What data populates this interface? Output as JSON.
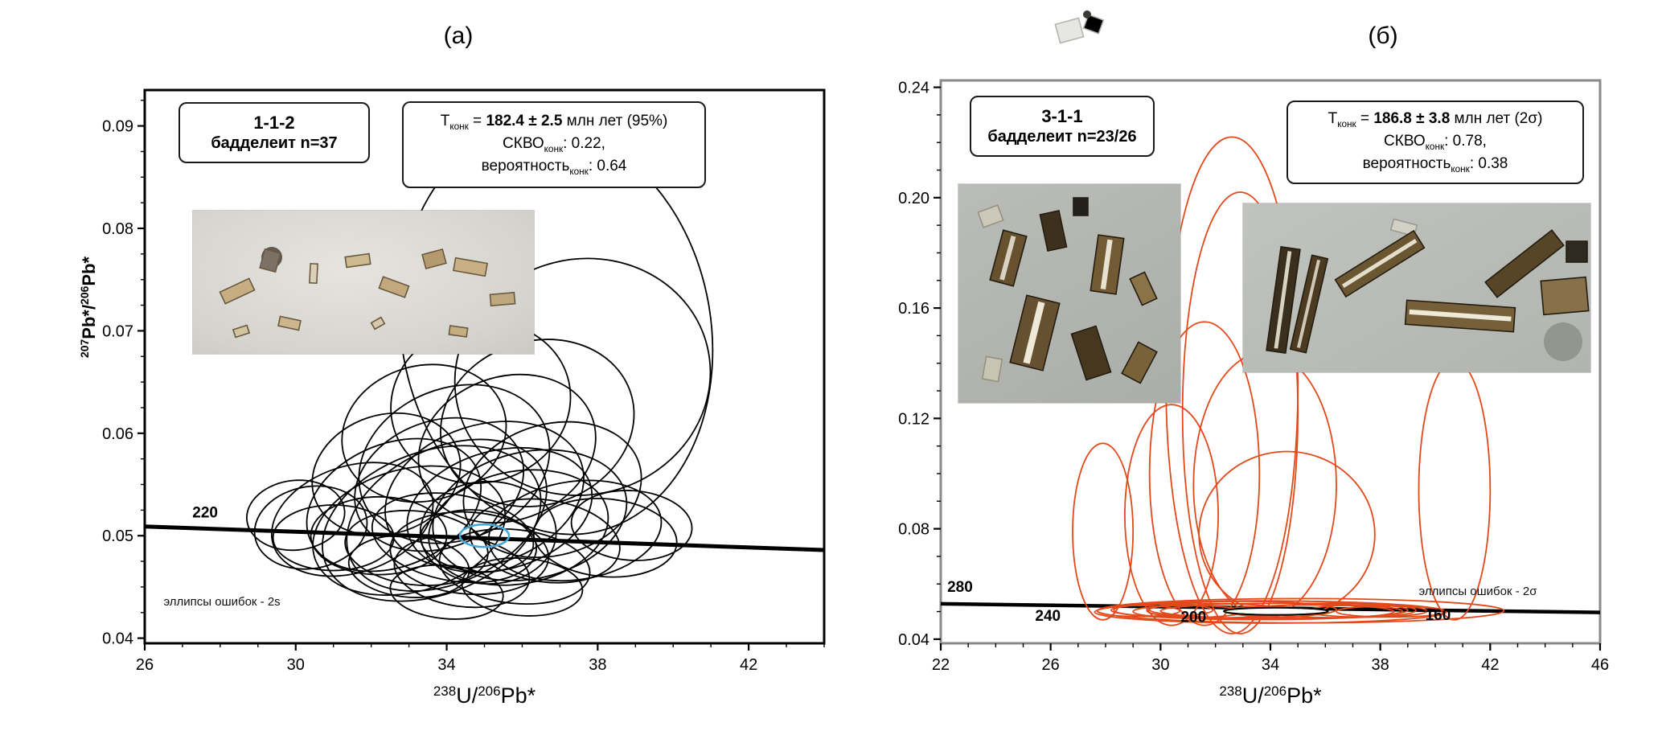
{
  "figure": {
    "background": "#ffffff"
  },
  "panels": [
    {
      "label": "(а)",
      "sample_box": {
        "code": "1-1-2",
        "mineral": "бадделеит",
        "count": "n=37"
      },
      "stats_box": {
        "t_prefix": "T",
        "t_sub": "конк",
        "t_mid": " = ",
        "t_value": "182.4 ± 2.5",
        "t_suffix": " млн лет (95%)",
        "mswd_prefix": "СКВО",
        "mswd_sub": "конк",
        "mswd_value": ": 0.22,",
        "prob_prefix": "вероятность",
        "prob_sub": "конк",
        "prob_value": ": 0.64"
      }
    },
    {
      "label": "(б)",
      "sample_box": {
        "code": "3-1-1",
        "mineral": "бадделеит",
        "count": "n=23/26"
      },
      "stats_box": {
        "t_prefix": "T",
        "t_sub": "конк",
        "t_mid": " = ",
        "t_value": "186.8 ± 3.8",
        "t_suffix": " млн лет (2σ)",
        "mswd_prefix": "СКВО",
        "mswd_sub": "конк",
        "mswd_value": ": 0.78,",
        "prob_prefix": "вероятность",
        "prob_sub": "конк",
        "prob_value": ": 0.38"
      }
    }
  ],
  "chart_data": [
    {
      "type": "scatter",
      "subtype": "tera-wasserburg-concordia-error-ellipses",
      "title": "(а)",
      "sample": "1-1-2 бадделеит n=37",
      "n": 37,
      "concordia_age_Ma": 182.4,
      "age_uncertainty_Ma": 2.5,
      "mswd": 0.22,
      "probability": 0.64,
      "xlabel": "238U/206Pb*",
      "ylabel": "207Pb*/206Pb*",
      "xlabel_parts": [
        {
          "t": "238",
          "sup": true
        },
        {
          "t": "U/"
        },
        {
          "t": "206",
          "sup": true
        },
        {
          "t": "Pb*"
        }
      ],
      "ylabel_parts": [
        {
          "t": "207",
          "sup": true
        },
        {
          "t": "Pb*/"
        },
        {
          "t": "206",
          "sup": true
        },
        {
          "t": "Pb*"
        }
      ],
      "xlim": [
        26,
        44
      ],
      "ylim": [
        0.0395,
        0.0935
      ],
      "xticks": [
        26,
        30,
        34,
        38,
        42
      ],
      "xtick_labels": [
        "26",
        "30",
        "34",
        "38",
        "42"
      ],
      "yticks": [
        0.04,
        0.05,
        0.06,
        0.07,
        0.08,
        0.09
      ],
      "ytick_labels": [
        "0.04",
        "0.05",
        "0.06",
        "0.07",
        "0.08",
        "0.09"
      ],
      "minor_x_step": 1,
      "minor_y_step": 0.0025,
      "grid": false,
      "ellipse_color": "#000000",
      "ellipse_stroke": 1.8,
      "concordia_line": {
        "x1": 26,
        "y1": 0.0509,
        "x2": 44,
        "y2": 0.0486,
        "width": 5,
        "color": "#000000"
      },
      "age_labels": [
        {
          "text": "220",
          "x": 27.6,
          "y": 0.0518
        }
      ],
      "concordia_age_ellipse": {
        "cx": 35.0,
        "cy": 0.05,
        "rx": 0.65,
        "ry": 0.0011,
        "color": "#49a8d8",
        "width": 2.6,
        "fill": "none"
      },
      "annotations": [
        {
          "text": "эллипсы ошибок - 2s",
          "x": 26.5,
          "y": 0.0432,
          "size": 15
        }
      ],
      "ellipses": [
        [
          33.0,
          0.0505,
          2.6,
          0.006,
          -15
        ],
        [
          34.2,
          0.0498,
          2.2,
          0.0042,
          10
        ],
        [
          35.1,
          0.0503,
          1.8,
          0.005,
          0
        ],
        [
          33.6,
          0.0512,
          3.0,
          0.007,
          -20
        ],
        [
          34.8,
          0.0495,
          1.5,
          0.003,
          5
        ],
        [
          32.2,
          0.05,
          1.8,
          0.0038,
          0
        ],
        [
          35.9,
          0.0508,
          2.4,
          0.0055,
          -10
        ],
        [
          36.6,
          0.0495,
          2.0,
          0.004,
          8
        ],
        [
          31.5,
          0.0516,
          2.2,
          0.0052,
          -18
        ],
        [
          34.0,
          0.052,
          2.8,
          0.0066,
          -25
        ],
        [
          35.4,
          0.0525,
          2.5,
          0.0058,
          -15
        ],
        [
          33.2,
          0.0488,
          1.9,
          0.0036,
          6
        ],
        [
          34.6,
          0.0483,
          2.1,
          0.004,
          4
        ],
        [
          36.2,
          0.052,
          2.6,
          0.0062,
          -12
        ],
        [
          32.6,
          0.053,
          2.4,
          0.006,
          -22
        ],
        [
          35.0,
          0.054,
          2.7,
          0.0068,
          -18
        ],
        [
          33.8,
          0.055,
          2.3,
          0.0062,
          -20
        ],
        [
          31.0,
          0.0498,
          1.6,
          0.0032,
          0
        ],
        [
          37.4,
          0.0505,
          2.3,
          0.0048,
          -8
        ],
        [
          38.2,
          0.0498,
          1.9,
          0.0038,
          5
        ],
        [
          34.4,
          0.0465,
          1.8,
          0.0034,
          8
        ],
        [
          33.0,
          0.047,
          1.6,
          0.003,
          5
        ],
        [
          35.8,
          0.047,
          2.0,
          0.0036,
          6
        ],
        [
          30.4,
          0.0508,
          1.5,
          0.004,
          -10
        ],
        [
          36.8,
          0.0545,
          2.4,
          0.0064,
          -16
        ],
        [
          34.2,
          0.057,
          2.6,
          0.0074,
          -22
        ],
        [
          32.4,
          0.056,
          2.0,
          0.0058,
          -18
        ],
        [
          35.6,
          0.0585,
          2.4,
          0.007,
          -20
        ],
        [
          33.4,
          0.06,
          2.2,
          0.0066,
          -15
        ],
        [
          36.4,
          0.061,
          2.6,
          0.008,
          -18
        ],
        [
          34.9,
          0.063,
          2.4,
          0.0078,
          -16
        ],
        [
          37.6,
          0.0655,
          3.4,
          0.0115,
          -14
        ],
        [
          36.9,
          0.07,
          4.1,
          0.02,
          -10
        ],
        [
          30.0,
          0.052,
          1.3,
          0.0034,
          -6
        ],
        [
          38.9,
          0.051,
          1.6,
          0.0034,
          4
        ],
        [
          34.0,
          0.0445,
          1.5,
          0.0026,
          5
        ],
        [
          36.0,
          0.045,
          1.6,
          0.0028,
          4
        ]
      ]
    },
    {
      "type": "scatter",
      "subtype": "tera-wasserburg-concordia-error-ellipses",
      "title": "(б)",
      "sample": "3-1-1 бадделеит n=23/26",
      "n": "23/26",
      "concordia_age_Ma": 186.8,
      "age_uncertainty_Ma": 3.8,
      "mswd": 0.78,
      "probability": 0.38,
      "xlabel": "238U/206Pb*",
      "ylabel": "",
      "xlabel_parts": [
        {
          "t": "238",
          "sup": true
        },
        {
          "t": "U/"
        },
        {
          "t": "206",
          "sup": true
        },
        {
          "t": "Pb*"
        }
      ],
      "ylabel_parts": [],
      "xlim": [
        22,
        46
      ],
      "ylim": [
        0.0385,
        0.2425
      ],
      "xticks": [
        22,
        26,
        30,
        34,
        38,
        42,
        46
      ],
      "xtick_labels": [
        "22",
        "26",
        "30",
        "34",
        "38",
        "42",
        "46"
      ],
      "yticks": [
        0.04,
        0.08,
        0.12,
        0.16,
        0.2,
        0.24
      ],
      "ytick_labels": [
        "0.04",
        "0.08",
        "0.12",
        "0.16",
        "0.20",
        "0.24"
      ],
      "minor_x_step": 1,
      "minor_y_step": 0.01,
      "grid": false,
      "ellipse_color": "#e2491b",
      "ellipse_stroke": 1.8,
      "concordia_line": {
        "x1": 22,
        "y1": 0.0528,
        "x2": 46,
        "y2": 0.0497,
        "width": 4.5,
        "color": "#000000"
      },
      "age_labels": [
        {
          "text": "280",
          "x": 22.7,
          "y": 0.0572
        },
        {
          "text": "240",
          "x": 25.9,
          "y": 0.0467
        },
        {
          "text": "200",
          "x": 31.2,
          "y": 0.0462
        },
        {
          "text": "160",
          "x": 40.1,
          "y": 0.047
        }
      ],
      "concordia_age_ellipse": {
        "cx": 34.2,
        "cy": 0.0501,
        "rx": 1.9,
        "ry": 0.0013,
        "color": "#000000",
        "width": 2,
        "fill": "#ffffff"
      },
      "annotations": [
        {
          "text": "эллипсы ошибок - 2σ",
          "x": 39.4,
          "y": 0.056,
          "size": 15
        }
      ],
      "ellipses": [
        [
          32.6,
          0.132,
          2.4,
          0.09,
          0
        ],
        [
          32.9,
          0.122,
          2.1,
          0.08,
          0
        ],
        [
          31.6,
          0.1,
          2.0,
          0.055,
          0
        ],
        [
          30.4,
          0.085,
          1.7,
          0.04,
          0
        ],
        [
          34.6,
          0.078,
          3.2,
          0.03,
          0
        ],
        [
          33.8,
          0.096,
          2.6,
          0.048,
          0
        ],
        [
          40.7,
          0.094,
          1.3,
          0.047,
          0
        ],
        [
          27.9,
          0.079,
          1.1,
          0.032,
          0
        ],
        [
          33.6,
          0.0505,
          5.4,
          0.0034,
          0
        ],
        [
          34.4,
          0.0502,
          4.4,
          0.0028,
          0
        ],
        [
          33.0,
          0.0507,
          3.4,
          0.003,
          0
        ],
        [
          35.5,
          0.05,
          3.0,
          0.0024,
          0
        ],
        [
          32.0,
          0.0503,
          2.5,
          0.0026,
          0
        ],
        [
          36.5,
          0.0504,
          2.8,
          0.0026,
          0
        ],
        [
          31.0,
          0.05,
          2.0,
          0.0022,
          0
        ],
        [
          34.0,
          0.0498,
          6.4,
          0.004,
          0
        ],
        [
          37.5,
          0.0502,
          2.2,
          0.0022,
          0
        ],
        [
          30.1,
          0.0505,
          1.8,
          0.0022,
          0
        ],
        [
          38.4,
          0.05,
          2.0,
          0.002,
          0
        ],
        [
          33.8,
          0.0502,
          1.5,
          0.0016,
          0
        ],
        [
          34.3,
          0.05,
          1.0,
          0.0012,
          0
        ],
        [
          35.1,
          0.0503,
          7.4,
          0.0044,
          0
        ],
        [
          29.2,
          0.0502,
          1.5,
          0.002,
          0
        ]
      ]
    }
  ]
}
